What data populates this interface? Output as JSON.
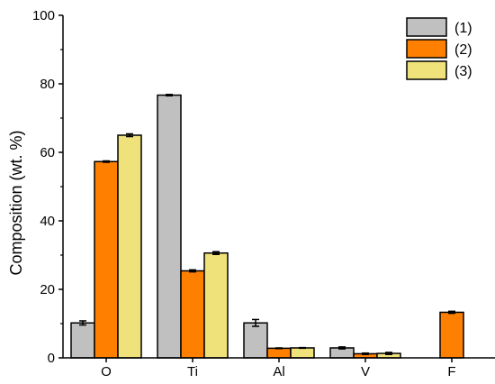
{
  "chart_data": {
    "type": "bar",
    "ylabel": "Composition (wt. %)",
    "xlabel": "",
    "ylim": [
      0,
      100
    ],
    "yticks": [
      "0",
      "20",
      "40",
      "60",
      "80",
      "100"
    ],
    "categories": [
      "O",
      "Ti",
      "Al",
      "V",
      "F"
    ],
    "series": [
      {
        "name": "(1)",
        "color": "#c0c0c0",
        "values": [
          10.2,
          76.7,
          10.2,
          2.9,
          null
        ],
        "errors": [
          0.6,
          0.2,
          1.0,
          0.3,
          null
        ]
      },
      {
        "name": "(2)",
        "color": "#ff8000",
        "values": [
          57.3,
          25.4,
          2.8,
          1.2,
          13.3
        ],
        "errors": [
          0.2,
          0.3,
          0.1,
          0.2,
          0.3
        ]
      },
      {
        "name": "(3)",
        "color": "#f0e27a",
        "values": [
          65.0,
          30.6,
          2.9,
          1.3,
          null
        ],
        "errors": [
          0.4,
          0.4,
          0.1,
          0.3,
          null
        ]
      }
    ],
    "legend": "top-right",
    "grid": false
  }
}
